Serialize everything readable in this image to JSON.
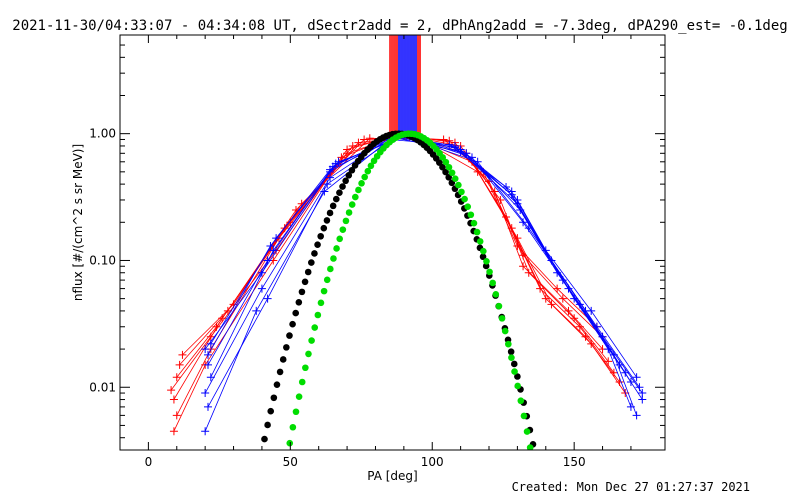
{
  "title": "2021-11-30/04:33:07 - 04:34:08 UT, dSectr2add = 2, dPhAng2add = -7.3deg, dPA290_est= -0.1deg",
  "created": "Created: Mon Dec 27 01:27:37 2021",
  "chart_data": {
    "type": "line",
    "title": "2021-11-30/04:33:07 - 04:34:08 UT, dSectr2add = 2, dPhAng2add = -7.3deg, dPA290_est= -0.1deg",
    "xlabel": "PA [deg]",
    "ylabel": "nflux [#/(cm^2 s sr MeV)]",
    "xlim": [
      -10,
      182
    ],
    "ylim": [
      0.0032,
      6.0
    ],
    "yscale": "log",
    "x_ticks": [
      0,
      50,
      100,
      150
    ],
    "x_tick_labels": [
      "0",
      "50",
      "100",
      "150"
    ],
    "y_ticks": [
      0.01,
      0.1,
      1.0
    ],
    "y_tick_labels": [
      "0.01",
      "0.10",
      "1.00"
    ],
    "grid": false,
    "colors": {
      "red": "#ff0000",
      "blue": "#0000ff",
      "black": "#000000",
      "green": "#00dd00"
    },
    "series": [
      {
        "color": "#ff0000",
        "marker": "plus",
        "style": "lines",
        "curves": [
          [
            [
              8,
              0.0095
            ],
            [
              22,
              0.025
            ],
            [
              45,
              0.12
            ],
            [
              70,
              0.75
            ],
            [
              88,
              0.98
            ],
            [
              108,
              0.85
            ],
            [
              122,
              0.35
            ],
            [
              132,
              0.09
            ],
            [
              148,
              0.04
            ],
            [
              160,
              0.02
            ]
          ],
          [
            [
              10,
              0.012
            ],
            [
              24,
              0.03
            ],
            [
              48,
              0.18
            ],
            [
              72,
              0.8
            ],
            [
              90,
              0.97
            ],
            [
              110,
              0.8
            ],
            [
              124,
              0.3
            ],
            [
              134,
              0.08
            ],
            [
              150,
              0.035
            ],
            [
              162,
              0.016
            ]
          ],
          [
            [
              9,
              0.008
            ],
            [
              26,
              0.035
            ],
            [
              50,
              0.2
            ],
            [
              74,
              0.85
            ],
            [
              92,
              0.95
            ],
            [
              112,
              0.7
            ],
            [
              126,
              0.22
            ],
            [
              138,
              0.06
            ],
            [
              152,
              0.03
            ],
            [
              164,
              0.013
            ]
          ],
          [
            [
              11,
              0.015
            ],
            [
              28,
              0.04
            ],
            [
              52,
              0.25
            ],
            [
              76,
              0.9
            ],
            [
              94,
              0.92
            ],
            [
              114,
              0.6
            ],
            [
              128,
              0.18
            ],
            [
              140,
              0.05
            ],
            [
              154,
              0.025
            ],
            [
              166,
              0.011
            ]
          ],
          [
            [
              12,
              0.018
            ],
            [
              30,
              0.045
            ],
            [
              54,
              0.28
            ],
            [
              78,
              0.92
            ],
            [
              96,
              0.9
            ],
            [
              116,
              0.5
            ],
            [
              130,
              0.15
            ],
            [
              142,
              0.045
            ],
            [
              156,
              0.022
            ],
            [
              168,
              0.009
            ]
          ],
          [
            [
              10,
              0.006
            ],
            [
              22,
              0.02
            ],
            [
              46,
              0.15
            ],
            [
              70,
              0.7
            ],
            [
              88,
              0.96
            ],
            [
              106,
              0.88
            ],
            [
              120,
              0.42
            ],
            [
              132,
              0.11
            ],
            [
              146,
              0.05
            ],
            [
              160,
              0.025
            ]
          ],
          [
            [
              9,
              0.0045
            ],
            [
              20,
              0.015
            ],
            [
              44,
              0.1
            ],
            [
              68,
              0.65
            ],
            [
              86,
              0.94
            ],
            [
              104,
              0.9
            ],
            [
              118,
              0.5
            ],
            [
              130,
              0.13
            ],
            [
              144,
              0.06
            ],
            [
              158,
              0.03
            ]
          ]
        ]
      },
      {
        "color": "#0000ff",
        "marker": "plus",
        "style": "lines",
        "curves": [
          [
            [
              20,
              0.02
            ],
            [
              40,
              0.08
            ],
            [
              64,
              0.5
            ],
            [
              86,
              0.97
            ],
            [
              108,
              0.8
            ],
            [
              128,
              0.35
            ],
            [
              140,
              0.12
            ],
            [
              156,
              0.04
            ],
            [
              172,
              0.012
            ]
          ],
          [
            [
              21,
              0.015
            ],
            [
              42,
              0.1
            ],
            [
              65,
              0.55
            ],
            [
              88,
              0.98
            ],
            [
              110,
              0.75
            ],
            [
              130,
              0.3
            ],
            [
              142,
              0.1
            ],
            [
              158,
              0.03
            ],
            [
              173,
              0.01
            ]
          ],
          [
            [
              22,
              0.012
            ],
            [
              44,
              0.12
            ],
            [
              66,
              0.58
            ],
            [
              90,
              0.97
            ],
            [
              112,
              0.7
            ],
            [
              131,
              0.25
            ],
            [
              144,
              0.08
            ],
            [
              160,
              0.025
            ],
            [
              174,
              0.009
            ]
          ],
          [
            [
              20,
              0.009
            ],
            [
              40,
              0.06
            ],
            [
              64,
              0.45
            ],
            [
              86,
              0.95
            ],
            [
              108,
              0.78
            ],
            [
              128,
              0.33
            ],
            [
              146,
              0.07
            ],
            [
              162,
              0.02
            ],
            [
              170,
              0.007
            ]
          ],
          [
            [
              21,
              0.007
            ],
            [
              42,
              0.05
            ],
            [
              63,
              0.4
            ],
            [
              87,
              0.93
            ],
            [
              110,
              0.72
            ],
            [
              130,
              0.28
            ],
            [
              148,
              0.06
            ],
            [
              164,
              0.018
            ],
            [
              172,
              0.006
            ]
          ],
          [
            [
              20,
              0.0045
            ],
            [
              38,
              0.04
            ],
            [
              62,
              0.35
            ],
            [
              85,
              0.9
            ],
            [
              106,
              0.82
            ],
            [
              126,
              0.38
            ],
            [
              150,
              0.05
            ],
            [
              166,
              0.015
            ],
            [
              174,
              0.008
            ]
          ],
          [
            [
              22,
              0.022
            ],
            [
              45,
              0.15
            ],
            [
              67,
              0.6
            ],
            [
              91,
              0.96
            ],
            [
              114,
              0.65
            ],
            [
              132,
              0.2
            ],
            [
              152,
              0.045
            ],
            [
              168,
              0.013
            ]
          ],
          [
            [
              21,
              0.018
            ],
            [
              43,
              0.13
            ],
            [
              64,
              0.52
            ],
            [
              89,
              0.97
            ],
            [
              116,
              0.6
            ],
            [
              134,
              0.18
            ],
            [
              154,
              0.04
            ],
            [
              170,
              0.011
            ]
          ]
        ]
      },
      {
        "name": "",
        "color": "#000000",
        "marker": "dot",
        "style": "dots",
        "x_range": [
          20,
          160
        ],
        "center": 88,
        "width": 20.0
      },
      {
        "name": "",
        "color": "#00dd00",
        "marker": "dot",
        "style": "dots",
        "x_range": [
          30,
          150
        ],
        "center": 92,
        "width": 17.8
      }
    ],
    "spike_lines": {
      "x_range": [
        85,
        96
      ],
      "colors": [
        "#ff0000",
        "#0000ff"
      ]
    }
  }
}
